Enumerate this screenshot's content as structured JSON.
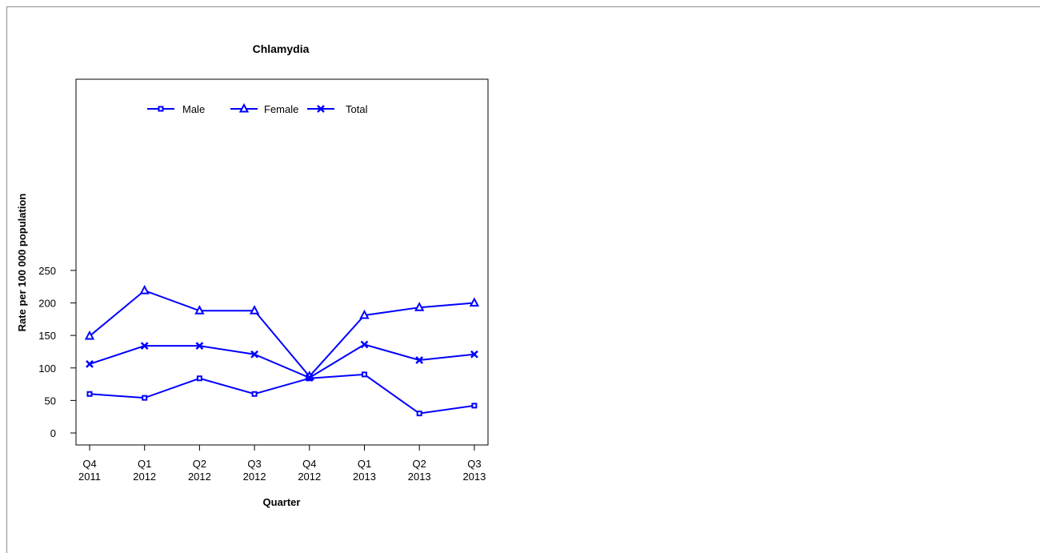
{
  "chart_data": {
    "type": "line",
    "title": "Chlamydia",
    "xlabel": "Quarter",
    "ylabel": "Rate per 100 000 population",
    "categories": [
      [
        "Q4",
        "2011"
      ],
      [
        "Q1",
        "2012"
      ],
      [
        "Q2",
        "2012"
      ],
      [
        "Q3",
        "2012"
      ],
      [
        "Q4",
        "2012"
      ],
      [
        "Q1",
        "2013"
      ],
      [
        "Q2",
        "2013"
      ],
      [
        "Q3",
        "2013"
      ]
    ],
    "ylim": [
      0,
      250
    ],
    "yticks": [
      0,
      50,
      100,
      150,
      200,
      250
    ],
    "legend_position": "top",
    "grid": false,
    "series": [
      {
        "name": "Male",
        "marker": "square",
        "color": "#0000ff",
        "values": [
          60,
          54,
          84,
          60,
          84,
          90,
          30,
          42
        ]
      },
      {
        "name": "Female",
        "marker": "triangle",
        "color": "#0000ff",
        "values": [
          149,
          219,
          188,
          188,
          87,
          181,
          193,
          200
        ]
      },
      {
        "name": "Total",
        "marker": "x",
        "color": "#0000ff",
        "values": [
          106,
          134,
          134,
          121,
          85,
          136,
          112,
          121
        ]
      }
    ]
  }
}
